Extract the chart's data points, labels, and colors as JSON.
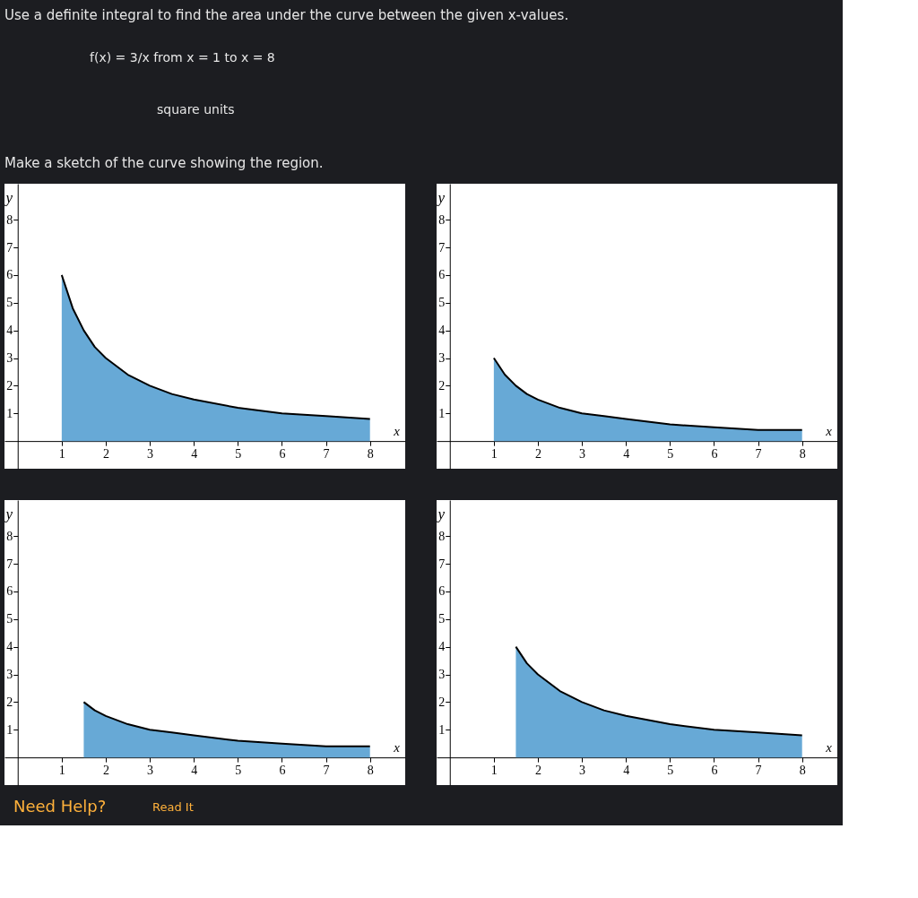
{
  "chart_data": [
    {
      "type": "other",
      "title": "Use a definite integral to find the area under the curve between the given x-values.",
      "annotations": [
        "f(x) = 3/x   from  x = 1  to  x = 8",
        "square units",
        "Make a sketch of the curve showing the region."
      ]
    },
    {
      "type": "area",
      "x": [
        1,
        1.25,
        1.5,
        1.75,
        2,
        2.5,
        3,
        3.5,
        4,
        5,
        6,
        7,
        8
      ],
      "values": [
        6,
        4.8,
        4,
        3.4,
        3,
        2.4,
        2,
        1.7,
        1.5,
        1.2,
        1,
        0.9,
        0.8
      ],
      "color": "#67a9d6",
      "xlim": [
        -0.3,
        8.8
      ],
      "ylim": [
        -1,
        9.3
      ],
      "xticks": [
        1,
        2,
        3,
        4,
        5,
        6,
        7,
        8
      ],
      "yticks": [
        1,
        2,
        3,
        4,
        5,
        6,
        7,
        8
      ],
      "xlabel": "x",
      "ylabel": "y",
      "grid": false
    },
    {
      "type": "area",
      "x": [
        1,
        1.25,
        1.5,
        1.75,
        2,
        2.5,
        3,
        3.5,
        4,
        5,
        6,
        7,
        8
      ],
      "values": [
        3,
        2.4,
        2,
        1.7,
        1.5,
        1.2,
        1,
        0.9,
        0.8,
        0.6,
        0.5,
        0.4,
        0.4
      ],
      "color": "#67a9d6",
      "xlim": [
        -0.3,
        8.8
      ],
      "ylim": [
        -1,
        9.3
      ],
      "xticks": [
        1,
        2,
        3,
        4,
        5,
        6,
        7,
        8
      ],
      "yticks": [
        1,
        2,
        3,
        4,
        5,
        6,
        7,
        8
      ],
      "xlabel": "x",
      "ylabel": "y",
      "grid": false
    },
    {
      "type": "area",
      "x": [
        1.5,
        1.75,
        2,
        2.5,
        3,
        3.5,
        4,
        5,
        6,
        7,
        8
      ],
      "values": [
        2,
        1.7,
        1.5,
        1.2,
        1,
        0.9,
        0.8,
        0.6,
        0.5,
        0.4,
        0.4
      ],
      "color": "#67a9d6",
      "xlim": [
        -0.3,
        8.8
      ],
      "ylim": [
        -1,
        9.3
      ],
      "xticks": [
        1,
        2,
        3,
        4,
        5,
        6,
        7,
        8
      ],
      "yticks": [
        1,
        2,
        3,
        4,
        5,
        6,
        7,
        8
      ],
      "xlabel": "x",
      "ylabel": "y",
      "grid": false
    },
    {
      "type": "area",
      "x": [
        1.5,
        1.75,
        2,
        2.5,
        3,
        3.5,
        4,
        5,
        6,
        7,
        8
      ],
      "values": [
        4,
        3.4,
        3,
        2.4,
        2,
        1.7,
        1.5,
        1.2,
        1,
        0.9,
        0.8
      ],
      "color": "#67a9d6",
      "xlim": [
        -0.3,
        8.8
      ],
      "ylim": [
        -1,
        9.3
      ],
      "xticks": [
        1,
        2,
        3,
        4,
        5,
        6,
        7,
        8
      ],
      "yticks": [
        1,
        2,
        3,
        4,
        5,
        6,
        7,
        8
      ],
      "xlabel": "x",
      "ylabel": "y",
      "grid": false
    },
    {
      "type": "other",
      "annotations": [
        "Need Help?",
        "Read It"
      ]
    }
  ]
}
